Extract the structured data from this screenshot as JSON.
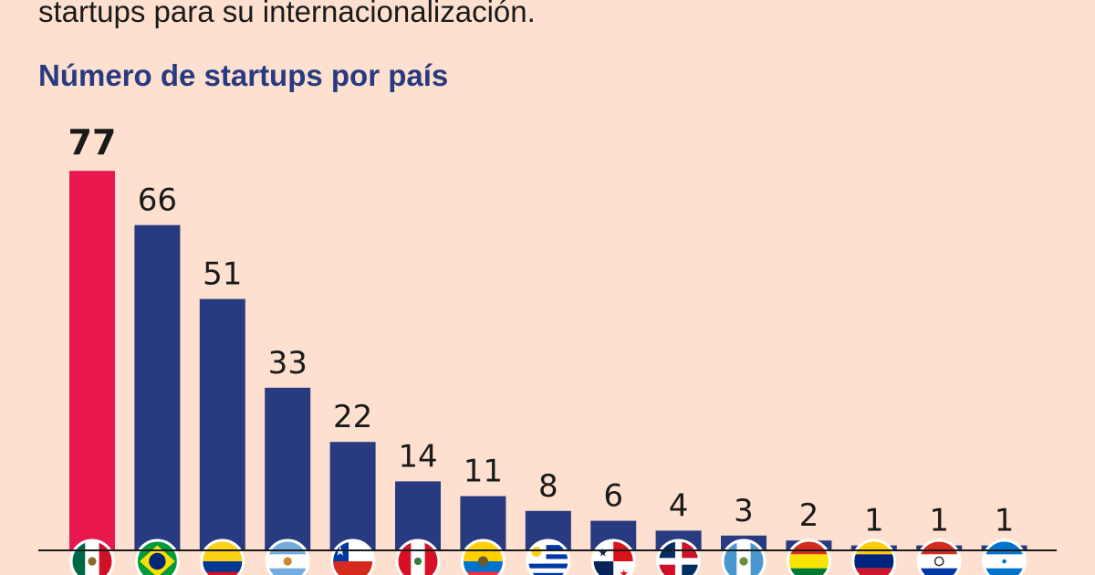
{
  "intro_text": "startups para su internacionalización.",
  "chart_data": {
    "type": "bar",
    "title": "Número de startups por país",
    "categories": [
      "México",
      "Brasil",
      "Colombia",
      "Argentina",
      "Chile",
      "Perú",
      "Ecuador",
      "Uruguay",
      "Panamá",
      "República Dominicana",
      "Guatemala",
      "Bolivia",
      "Venezuela",
      "Paraguay",
      "Honduras"
    ],
    "values": [
      77,
      66,
      51,
      33,
      22,
      14,
      11,
      8,
      6,
      4,
      3,
      2,
      1,
      1,
      1
    ],
    "ylim": [
      0,
      80
    ],
    "highlight_index": 0,
    "colors": {
      "highlight": "#e8184e",
      "bar": "#283a80",
      "baseline": "#1a1a1a",
      "background": "#fde0cf",
      "title": "#283a80"
    },
    "category_labels_shown_as": "flag-icons",
    "grid": false,
    "legend": "none"
  }
}
